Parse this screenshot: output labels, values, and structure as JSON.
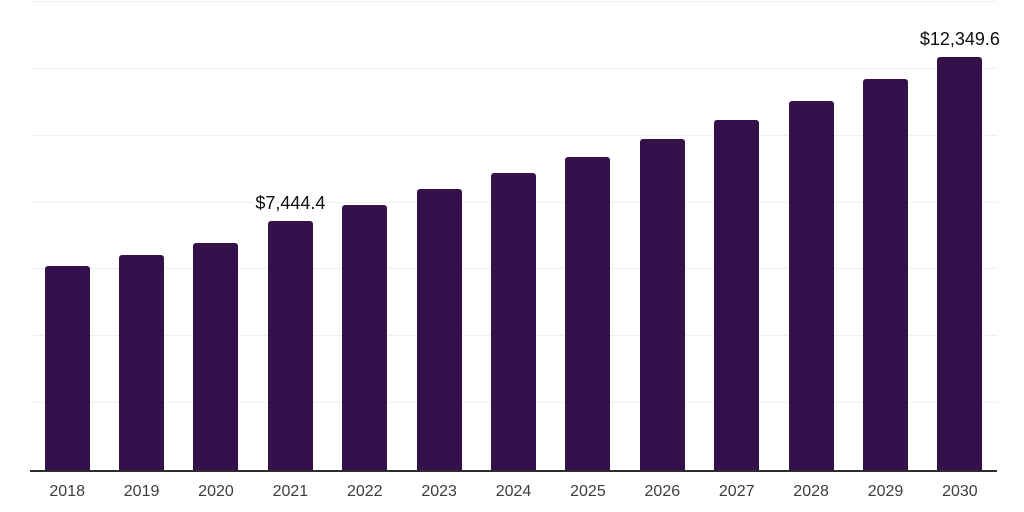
{
  "chart_data": {
    "type": "bar",
    "title": "",
    "xlabel": "",
    "ylabel": "",
    "categories": [
      "2018",
      "2019",
      "2020",
      "2021",
      "2022",
      "2023",
      "2024",
      "2025",
      "2026",
      "2027",
      "2028",
      "2029",
      "2030"
    ],
    "values": [
      6100,
      6420,
      6800,
      7444.4,
      7940,
      8410,
      8900,
      9360,
      9890,
      10460,
      11050,
      11690,
      12349.6
    ],
    "data_labels": [
      "",
      "",
      "",
      "$7,444.4",
      "",
      "",
      "",
      "",
      "",
      "",
      "",
      "",
      "$12,349.6"
    ],
    "ylim": [
      0,
      14000
    ],
    "grid": "horizontal",
    "gridline_interval": 2000,
    "legend": "none"
  },
  "colors": {
    "bar": "#35114C",
    "gridline": "#efefef",
    "axis_line": "#2d2d2d",
    "tick_label": "#3d3d3d",
    "data_label": "#0f0f0f",
    "background": "#ffffff"
  }
}
